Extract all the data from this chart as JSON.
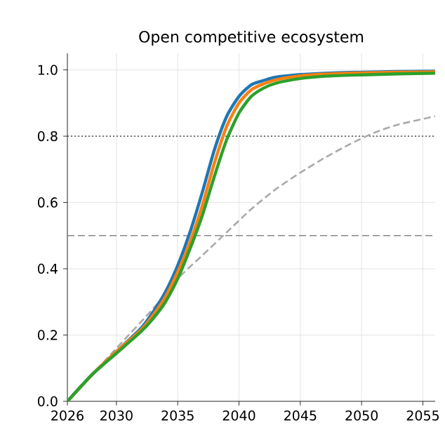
{
  "chart_data": {
    "type": "line",
    "title": "Open competitive ecosystem",
    "xlim": [
      2026,
      2056
    ],
    "xticks": [
      2026,
      2030,
      2035,
      2040,
      2045,
      2050,
      2055
    ],
    "ylim": [
      0,
      1.05
    ],
    "yticks": [
      {
        "value": 0,
        "label": "0.0"
      },
      0.2,
      0.4,
      0.6,
      0.8,
      {
        "value": 1,
        "label": "1.0"
      }
    ],
    "grid": true,
    "x": [
      2026,
      2028,
      2030,
      2032,
      2033,
      2034,
      2035,
      2036,
      2037,
      2038,
      2039,
      2040,
      2041,
      2042,
      2043,
      2045,
      2047,
      2050,
      2053,
      2056
    ],
    "series": [
      {
        "color": "#1f77b4",
        "values": [
          0,
          0.08,
          0.15,
          0.22,
          0.27,
          0.33,
          0.41,
          0.51,
          0.63,
          0.76,
          0.86,
          0.92,
          0.955,
          0.968,
          0.978,
          0.986,
          0.99,
          0.993,
          0.995,
          0.996
        ]
      },
      {
        "color": "#ff7f0e",
        "values": [
          0,
          0.08,
          0.15,
          0.215,
          0.26,
          0.315,
          0.39,
          0.48,
          0.59,
          0.72,
          0.83,
          0.9,
          0.94,
          0.958,
          0.97,
          0.982,
          0.987,
          0.991,
          0.993,
          0.994
        ]
      },
      {
        "color": "#2ca02c",
        "values": [
          0,
          0.08,
          0.145,
          0.21,
          0.25,
          0.3,
          0.37,
          0.46,
          0.56,
          0.68,
          0.79,
          0.87,
          0.92,
          0.945,
          0.96,
          0.974,
          0.981,
          0.985,
          0.988,
          0.99
        ]
      },
      {
        "color": "#aaaaaa",
        "line_style": "dashed",
        "x": [
          2026,
          2030,
          2033,
          2035,
          2037,
          2039,
          2041,
          2043,
          2045,
          2047,
          2049,
          2051,
          2053,
          2056
        ],
        "values": [
          0,
          0.16,
          0.28,
          0.37,
          0.44,
          0.51,
          0.58,
          0.64,
          0.69,
          0.735,
          0.775,
          0.81,
          0.835,
          0.86
        ]
      }
    ],
    "ref_lines": [
      {
        "axis": "y",
        "value": 0.8,
        "color": "#666666",
        "line_style": "dotted"
      },
      {
        "axis": "y",
        "value": 0.5,
        "color": "#888888",
        "line_style": "dashed"
      }
    ]
  }
}
